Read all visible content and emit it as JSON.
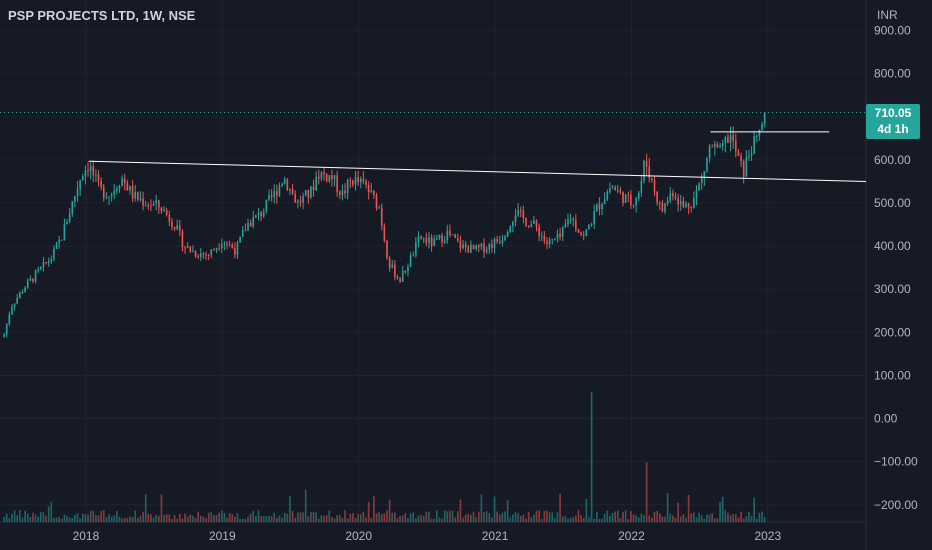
{
  "header": {
    "title": "PSP PROJECTS LTD, 1W, NSE",
    "currency": "INR"
  },
  "last_price": {
    "value": "710.05",
    "countdown": "4d 1h"
  },
  "colors": {
    "background": "#161a25",
    "up": "#26a69a",
    "down": "#ef5350",
    "trendline": "#ffffff",
    "grid": "#1f2330",
    "axis_text": "#b2b5be"
  },
  "chart_data": {
    "type": "candlestick",
    "y_axis_ticks": [
      "900.00",
      "800.00",
      "700.00",
      "600.00",
      "500.00",
      "400.00",
      "300.00",
      "200.00",
      "100.00",
      "0.00",
      "−100.00",
      "−200.00"
    ],
    "ylim": [
      -240,
      920
    ],
    "x_axis_ticks": [
      "2018",
      "2019",
      "2020",
      "2021",
      "2022",
      "2023"
    ],
    "x_tick_dates": [
      2018.0,
      2019.0,
      2020.0,
      2021.0,
      2022.0,
      2023.0
    ],
    "xlim": [
      2017.37,
      2023.72
    ],
    "price_path": [
      [
        2017.4,
        195
      ],
      [
        2017.45,
        260
      ],
      [
        2017.55,
        305
      ],
      [
        2017.65,
        340
      ],
      [
        2017.75,
        375
      ],
      [
        2017.82,
        420
      ],
      [
        2017.9,
        500
      ],
      [
        2017.97,
        570
      ],
      [
        2018.02,
        590
      ],
      [
        2018.1,
        530
      ],
      [
        2018.18,
        520
      ],
      [
        2018.26,
        560
      ],
      [
        2018.35,
        515
      ],
      [
        2018.45,
        500
      ],
      [
        2018.55,
        490
      ],
      [
        2018.65,
        450
      ],
      [
        2018.72,
        400
      ],
      [
        2018.8,
        385
      ],
      [
        2018.9,
        380
      ],
      [
        2019.0,
        415
      ],
      [
        2019.1,
        390
      ],
      [
        2019.18,
        450
      ],
      [
        2019.28,
        475
      ],
      [
        2019.38,
        520
      ],
      [
        2019.45,
        560
      ],
      [
        2019.55,
        500
      ],
      [
        2019.65,
        525
      ],
      [
        2019.7,
        570
      ],
      [
        2019.8,
        560
      ],
      [
        2019.88,
        520
      ],
      [
        2019.95,
        555
      ],
      [
        2020.05,
        540
      ],
      [
        2020.15,
        490
      ],
      [
        2020.22,
        360
      ],
      [
        2020.3,
        320
      ],
      [
        2020.38,
        370
      ],
      [
        2020.45,
        420
      ],
      [
        2020.55,
        405
      ],
      [
        2020.65,
        430
      ],
      [
        2020.75,
        400
      ],
      [
        2020.85,
        390
      ],
      [
        2020.95,
        400
      ],
      [
        2021.05,
        420
      ],
      [
        2021.15,
        480
      ],
      [
        2021.22,
        460
      ],
      [
        2021.3,
        445
      ],
      [
        2021.38,
        405
      ],
      [
        2021.48,
        420
      ],
      [
        2021.55,
        470
      ],
      [
        2021.65,
        420
      ],
      [
        2021.75,
        490
      ],
      [
        2021.85,
        540
      ],
      [
        2021.92,
        520
      ],
      [
        2022.0,
        500
      ],
      [
        2022.06,
        530
      ],
      [
        2022.1,
        600
      ],
      [
        2022.15,
        550
      ],
      [
        2022.22,
        480
      ],
      [
        2022.3,
        530
      ],
      [
        2022.38,
        490
      ],
      [
        2022.45,
        505
      ],
      [
        2022.52,
        560
      ],
      [
        2022.58,
        635
      ],
      [
        2022.65,
        615
      ],
      [
        2022.72,
        660
      ],
      [
        2022.78,
        605
      ],
      [
        2022.82,
        570
      ],
      [
        2022.87,
        625
      ],
      [
        2022.92,
        645
      ],
      [
        2022.98,
        710
      ]
    ],
    "trendlines": [
      {
        "from": [
          2018.02,
          597
        ],
        "to": [
          2023.72,
          550
        ]
      },
      {
        "from": [
          2022.58,
          665
        ],
        "to": [
          2023.45,
          665
        ]
      }
    ],
    "volume_spikes": [
      {
        "x": 2021.7,
        "height_ratio": 1.0
      },
      {
        "x": 2022.11,
        "height_ratio": 0.46
      }
    ],
    "last_value": 710.05
  }
}
